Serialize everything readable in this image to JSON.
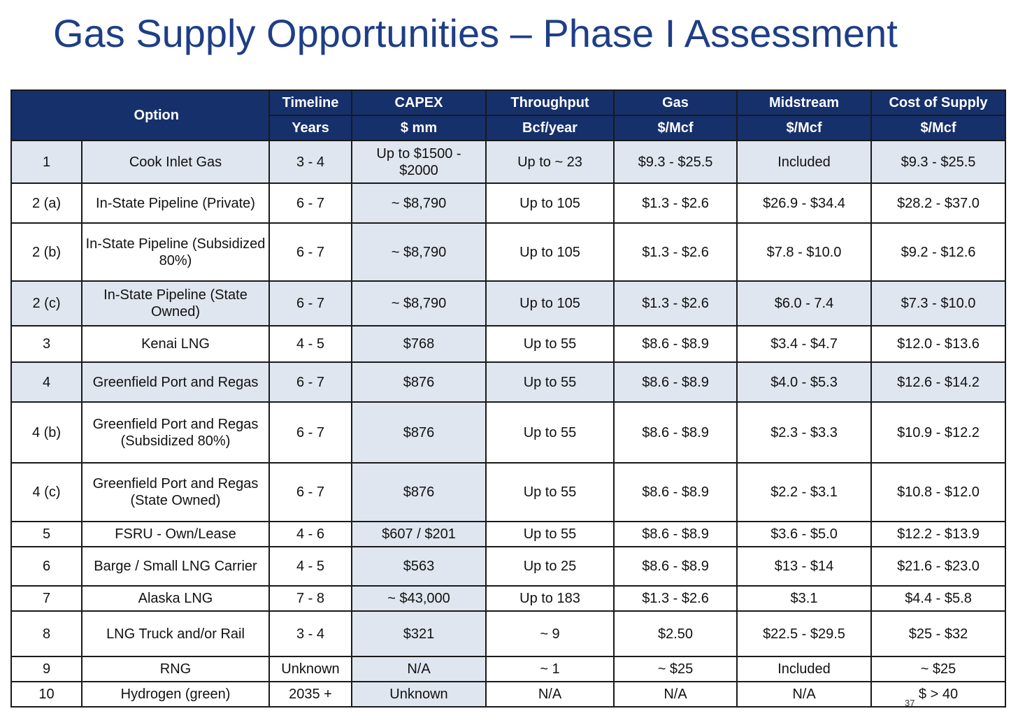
{
  "title": "Gas Supply Opportunities – Phase I Assessment",
  "headers": {
    "option": "Option",
    "timeline": "Timeline",
    "timeline_unit": "Years",
    "capex": "CAPEX",
    "capex_unit": "$ mm",
    "throughput": "Throughput",
    "throughput_unit": "Bcf/year",
    "gas": "Gas",
    "gas_unit": "$/Mcf",
    "midstream": "Midstream",
    "midstream_unit": "$/Mcf",
    "cost_of_supply": "Cost of Supply",
    "cost_of_supply_unit": "$/Mcf"
  },
  "rows": [
    {
      "num": "1",
      "option": "Cook Inlet Gas",
      "timeline": "3 - 4",
      "capex": "Up to $1500 - $2000",
      "throughput": "Up to ~ 23",
      "gas": "$9.3 - $25.5",
      "midstream": "Included",
      "cost": "$9.3 - $25.5"
    },
    {
      "num": "2 (a)",
      "option": "In-State Pipeline (Private)",
      "timeline": "6 - 7",
      "capex": "~ $8,790",
      "throughput": "Up to 105",
      "gas": "$1.3 - $2.6",
      "midstream": "$26.9 - $34.4",
      "cost": "$28.2 - $37.0"
    },
    {
      "num": "2 (b)",
      "option": "In-State Pipeline (Subsidized 80%)",
      "timeline": "6 - 7",
      "capex": "~ $8,790",
      "throughput": "Up to 105",
      "gas": "$1.3 - $2.6",
      "midstream": "$7.8 - $10.0",
      "cost": "$9.2 - $12.6"
    },
    {
      "num": "2 (c)",
      "option": "In-State Pipeline (State Owned)",
      "timeline": "6 - 7",
      "capex": "~ $8,790",
      "throughput": "Up to 105",
      "gas": "$1.3 - $2.6",
      "midstream": "$6.0 - 7.4",
      "cost": "$7.3 - $10.0"
    },
    {
      "num": "3",
      "option": "Kenai LNG",
      "timeline": "4 - 5",
      "capex": "$768",
      "throughput": "Up to 55",
      "gas": "$8.6 - $8.9",
      "midstream": "$3.4 - $4.7",
      "cost": "$12.0 - $13.6"
    },
    {
      "num": "4",
      "option": "Greenfield Port and Regas",
      "timeline": "6 - 7",
      "capex": "$876",
      "throughput": "Up to 55",
      "gas": "$8.6 - $8.9",
      "midstream": "$4.0 - $5.3",
      "cost": "$12.6 - $14.2"
    },
    {
      "num": "4 (b)",
      "option": "Greenfield Port and Regas (Subsidized 80%)",
      "timeline": "6 - 7",
      "capex": "$876",
      "throughput": "Up to 55",
      "gas": "$8.6 - $8.9",
      "midstream": "$2.3 - $3.3",
      "cost": "$10.9 - $12.2"
    },
    {
      "num": "4 (c)",
      "option": "Greenfield Port and Regas (State Owned)",
      "timeline": "6 - 7",
      "capex": "$876",
      "throughput": "Up to 55",
      "gas": "$8.6 - $8.9",
      "midstream": "$2.2 - $3.1",
      "cost": "$10.8 - $12.0"
    },
    {
      "num": "5",
      "option": "FSRU - Own/Lease",
      "timeline": "4 - 6",
      "capex": "$607 / $201",
      "throughput": "Up to 55",
      "gas": "$8.6 - $8.9",
      "midstream": "$3.6 - $5.0",
      "cost": "$12.2 - $13.9"
    },
    {
      "num": "6",
      "option": "Barge / Small LNG Carrier",
      "timeline": "4 - 5",
      "capex": "$563",
      "throughput": "Up to 25",
      "gas": "$8.6 - $8.9",
      "midstream": "$13 - $14",
      "cost": "$21.6 - $23.0"
    },
    {
      "num": "7",
      "option": "Alaska LNG",
      "timeline": "7 - 8",
      "capex": "~ $43,000",
      "throughput": "Up to 183",
      "gas": "$1.3 - $2.6",
      "midstream": "$3.1",
      "cost": "$4.4 - $5.8"
    },
    {
      "num": "8",
      "option": "LNG Truck and/or Rail",
      "timeline": "3 - 4",
      "capex": "$321",
      "throughput": "~ 9",
      "gas": "$2.50",
      "midstream": "$22.5 - $29.5",
      "cost": "$25 - $32"
    },
    {
      "num": "9",
      "option": "RNG",
      "timeline": "Unknown",
      "capex": "N/A",
      "throughput": "~ 1",
      "gas": "~ $25",
      "midstream": "Included",
      "cost": "~ $25"
    },
    {
      "num": "10",
      "option": "Hydrogen (green)",
      "timeline": "2035 +",
      "capex": "Unknown",
      "throughput": "N/A",
      "gas": "N/A",
      "midstream": "N/A",
      "cost": "$ > 40"
    }
  ],
  "page_number": "37"
}
